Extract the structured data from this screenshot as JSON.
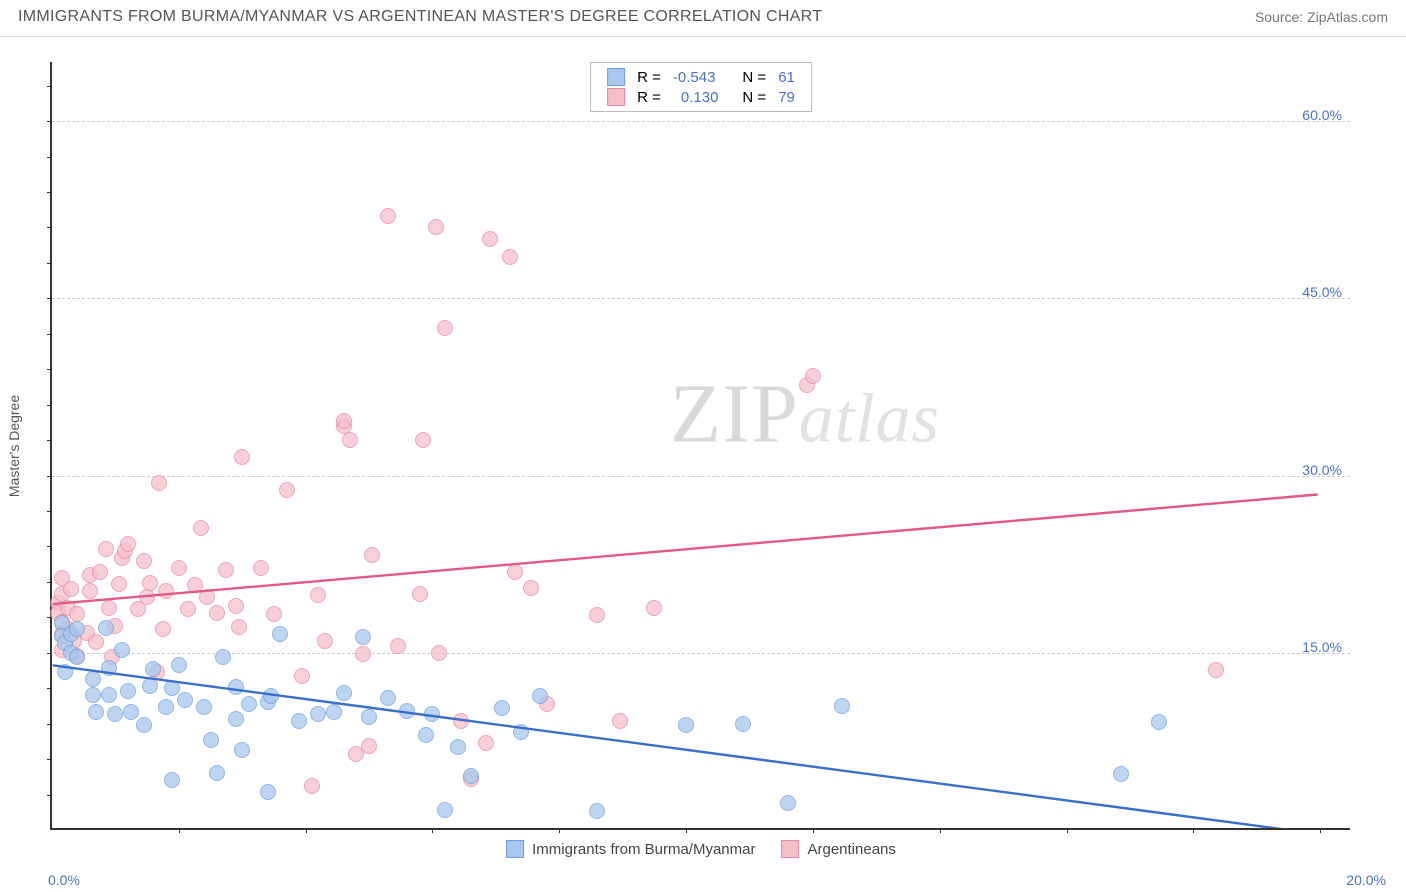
{
  "header": {
    "title": "IMMIGRANTS FROM BURMA/MYANMAR VS ARGENTINEAN MASTER'S DEGREE CORRELATION CHART",
    "source": "Source: ZipAtlas.com"
  },
  "axes": {
    "ylabel": "Master's Degree",
    "y_ticks": [
      {
        "value": 15.0,
        "label": "15.0%"
      },
      {
        "value": 30.0,
        "label": "30.0%"
      },
      {
        "value": 45.0,
        "label": "45.0%"
      },
      {
        "value": 60.0,
        "label": "60.0%"
      }
    ],
    "ylim": [
      0,
      65
    ],
    "x_ticks": [
      {
        "value": 0.0,
        "label": "0.0%"
      },
      {
        "value": 20.0,
        "label": "20.0%"
      }
    ],
    "x_minor_step": 2.0,
    "xlim": [
      0,
      20.5
    ],
    "y_minor_step": 3.0,
    "grid_color": "#cccccc"
  },
  "series": {
    "burma": {
      "label": "Immigrants from Burma/Myanmar",
      "fill": "#a7c7ec",
      "stroke": "#6d9fdc",
      "opacity": 0.75,
      "R": "-0.543",
      "N": "61",
      "trend": {
        "x1": 0.0,
        "y1": 13.8,
        "x2": 20.0,
        "y2": -0.5,
        "color": "#3a6fc9",
        "width": 2.4
      },
      "points": [
        [
          0.15,
          17.5
        ],
        [
          0.15,
          16.4
        ],
        [
          0.2,
          15.8
        ],
        [
          0.2,
          13.4
        ],
        [
          0.3,
          16.6
        ],
        [
          0.3,
          15.0
        ],
        [
          0.4,
          14.6
        ],
        [
          0.4,
          17.0
        ],
        [
          0.65,
          12.8
        ],
        [
          0.65,
          11.4
        ],
        [
          0.7,
          10.0
        ],
        [
          0.85,
          17.1
        ],
        [
          0.9,
          13.7
        ],
        [
          0.9,
          11.4
        ],
        [
          1.0,
          9.8
        ],
        [
          1.1,
          15.2
        ],
        [
          1.2,
          11.8
        ],
        [
          1.25,
          10.0
        ],
        [
          1.45,
          8.9
        ],
        [
          1.55,
          12.2
        ],
        [
          1.6,
          13.6
        ],
        [
          1.8,
          10.4
        ],
        [
          1.9,
          12.0
        ],
        [
          1.9,
          4.2
        ],
        [
          2.0,
          14.0
        ],
        [
          2.1,
          11.0
        ],
        [
          2.4,
          10.4
        ],
        [
          2.5,
          7.6
        ],
        [
          2.6,
          4.8
        ],
        [
          2.7,
          14.6
        ],
        [
          2.9,
          12.1
        ],
        [
          2.9,
          9.4
        ],
        [
          3.0,
          6.8
        ],
        [
          3.1,
          10.7
        ],
        [
          3.4,
          3.2
        ],
        [
          3.4,
          10.8
        ],
        [
          3.45,
          11.3
        ],
        [
          3.6,
          16.6
        ],
        [
          3.9,
          9.2
        ],
        [
          4.2,
          9.8
        ],
        [
          4.45,
          10.0
        ],
        [
          4.6,
          11.6
        ],
        [
          4.9,
          16.3
        ],
        [
          5.0,
          9.6
        ],
        [
          5.3,
          11.2
        ],
        [
          5.6,
          10.1
        ],
        [
          5.9,
          8.0
        ],
        [
          6.0,
          9.8
        ],
        [
          6.2,
          1.7
        ],
        [
          6.4,
          7.0
        ],
        [
          6.6,
          4.6
        ],
        [
          7.1,
          10.3
        ],
        [
          7.4,
          8.3
        ],
        [
          7.7,
          11.3
        ],
        [
          8.6,
          1.6
        ],
        [
          10.0,
          8.9
        ],
        [
          10.9,
          9.0
        ],
        [
          11.6,
          2.3
        ],
        [
          12.45,
          10.5
        ],
        [
          16.85,
          4.7
        ],
        [
          17.45,
          9.1
        ]
      ]
    },
    "arg": {
      "label": "Argentineans",
      "fill": "#f5bfca",
      "stroke": "#e68aa1",
      "opacity": 0.75,
      "R": "0.130",
      "N": "79",
      "trend": {
        "x1": 0.0,
        "y1": 19.0,
        "x2": 20.0,
        "y2": 28.3,
        "color": "#e05a83",
        "width": 2.4
      },
      "points": [
        [
          0.1,
          19.2
        ],
        [
          0.1,
          18.4
        ],
        [
          0.15,
          17.6
        ],
        [
          0.15,
          16.6
        ],
        [
          0.15,
          15.2
        ],
        [
          0.15,
          21.3
        ],
        [
          0.15,
          20.0
        ],
        [
          0.25,
          17.0
        ],
        [
          0.25,
          18.8
        ],
        [
          0.3,
          20.4
        ],
        [
          0.35,
          16.0
        ],
        [
          0.4,
          18.3
        ],
        [
          0.4,
          14.7
        ],
        [
          0.55,
          16.7
        ],
        [
          0.6,
          20.2
        ],
        [
          0.6,
          21.6
        ],
        [
          0.7,
          15.9
        ],
        [
          0.75,
          21.8
        ],
        [
          0.85,
          23.8
        ],
        [
          0.9,
          18.8
        ],
        [
          0.95,
          14.6
        ],
        [
          1.0,
          17.3
        ],
        [
          1.05,
          20.8
        ],
        [
          1.1,
          23.0
        ],
        [
          1.15,
          23.6
        ],
        [
          1.2,
          24.2
        ],
        [
          1.35,
          18.7
        ],
        [
          1.45,
          22.8
        ],
        [
          1.5,
          19.7
        ],
        [
          1.55,
          20.9
        ],
        [
          1.65,
          13.4
        ],
        [
          1.68,
          29.4
        ],
        [
          1.75,
          17.0
        ],
        [
          1.8,
          20.2
        ],
        [
          2.0,
          22.2
        ],
        [
          2.15,
          18.7
        ],
        [
          2.25,
          20.7
        ],
        [
          2.35,
          25.6
        ],
        [
          2.45,
          19.7
        ],
        [
          2.6,
          18.4
        ],
        [
          2.75,
          22.0
        ],
        [
          2.9,
          19.0
        ],
        [
          2.95,
          17.2
        ],
        [
          3.0,
          31.6
        ],
        [
          3.3,
          22.2
        ],
        [
          3.5,
          18.3
        ],
        [
          3.7,
          28.8
        ],
        [
          3.95,
          13.0
        ],
        [
          4.1,
          3.7
        ],
        [
          4.2,
          19.9
        ],
        [
          4.3,
          16.0
        ],
        [
          4.6,
          34.2
        ],
        [
          4.6,
          34.6
        ],
        [
          4.7,
          33.0
        ],
        [
          4.8,
          6.4
        ],
        [
          4.9,
          14.9
        ],
        [
          5.0,
          7.1
        ],
        [
          5.05,
          23.3
        ],
        [
          5.3,
          52.0
        ],
        [
          5.45,
          15.6
        ],
        [
          5.8,
          20.0
        ],
        [
          5.85,
          33.0
        ],
        [
          6.05,
          51.0
        ],
        [
          6.1,
          15.0
        ],
        [
          6.2,
          42.5
        ],
        [
          6.45,
          9.2
        ],
        [
          6.6,
          4.3
        ],
        [
          6.85,
          7.4
        ],
        [
          6.9,
          50.0
        ],
        [
          7.22,
          48.5
        ],
        [
          7.3,
          21.8
        ],
        [
          7.55,
          20.5
        ],
        [
          7.8,
          10.7
        ],
        [
          8.6,
          18.2
        ],
        [
          8.95,
          9.2
        ],
        [
          9.5,
          18.8
        ],
        [
          11.9,
          37.7
        ],
        [
          12.0,
          38.4
        ],
        [
          18.35,
          13.5
        ]
      ]
    }
  },
  "watermark": {
    "part1": "ZIP",
    "part2": "atlas"
  },
  "legend_labels": {
    "R": "R =",
    "N": "N ="
  }
}
